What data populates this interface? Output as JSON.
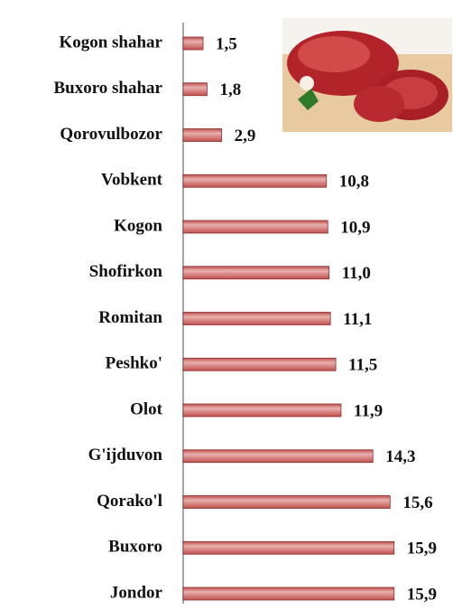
{
  "chart_data": {
    "type": "bar",
    "orientation": "horizontal",
    "categories": [
      "Kogon shahar",
      "Buxoro shahar",
      "Qorovulbozor",
      "Vobkent",
      "Kogon",
      "Shofirkon",
      "Romitan",
      "Peshko'",
      "Olot",
      "G'ijduvon",
      "Qorako'l",
      "Buxoro",
      "Jondor"
    ],
    "values": [
      1.5,
      1.8,
      2.9,
      10.8,
      10.9,
      11.0,
      11.1,
      11.5,
      11.9,
      14.3,
      15.6,
      15.9,
      15.9
    ],
    "value_labels": [
      "1,5",
      "1,8",
      "2,9",
      "10,8",
      "10,9",
      "11,0",
      "11,1",
      "11,5",
      "11,9",
      "14,3",
      "15,6",
      "15,9",
      "15,9"
    ],
    "color": "#c0504d"
  }
}
